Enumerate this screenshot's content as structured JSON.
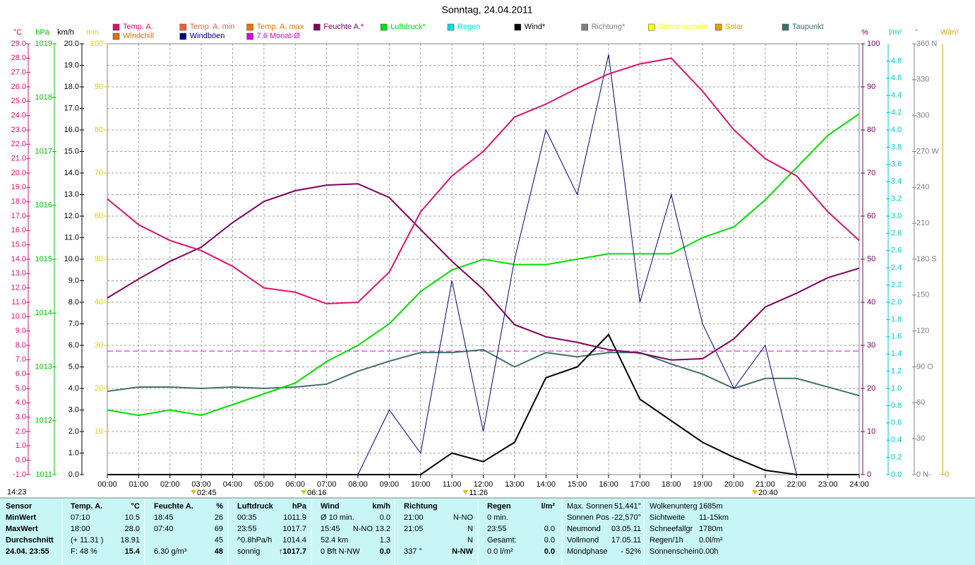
{
  "chart_data": {
    "type": "line",
    "title": "Sonntag, 24.04.2011",
    "time_label": "14:23",
    "grid": true,
    "x": [
      0,
      1,
      2,
      3,
      4,
      5,
      6,
      7,
      8,
      9,
      10,
      11,
      12,
      13,
      14,
      15,
      16,
      17,
      18,
      19,
      20,
      21,
      22,
      23,
      24
    ],
    "xlim": [
      0,
      24
    ],
    "xticks": [
      {
        "value": 0,
        "label": "00:00"
      },
      {
        "value": 1,
        "label": "01:00"
      },
      {
        "value": 2,
        "label": "02:00"
      },
      {
        "value": 3,
        "label": "03:00"
      },
      {
        "value": 4,
        "label": "04:00"
      },
      {
        "value": 5,
        "label": "05:00"
      },
      {
        "value": 6,
        "label": "06:00"
      },
      {
        "value": 7,
        "label": "07:00"
      },
      {
        "value": 8,
        "label": "08:00"
      },
      {
        "value": 9,
        "label": "09:00"
      },
      {
        "value": 10,
        "label": "10:00"
      },
      {
        "value": 11,
        "label": "11:00"
      },
      {
        "value": 12,
        "label": "12:00"
      },
      {
        "value": 13,
        "label": "13:00"
      },
      {
        "value": 14,
        "label": "14:00"
      },
      {
        "value": 15,
        "label": "15:00"
      },
      {
        "value": 16,
        "label": "16:00"
      },
      {
        "value": 17,
        "label": "17:00"
      },
      {
        "value": 18,
        "label": "18:00"
      },
      {
        "value": 19,
        "label": "19:00"
      },
      {
        "value": 20,
        "label": "20:00"
      },
      {
        "value": 21,
        "label": "21:00"
      },
      {
        "value": 22,
        "label": "22:00"
      },
      {
        "value": 23,
        "label": "23:00"
      },
      {
        "value": 24,
        "label": "24:00"
      }
    ],
    "markers": [
      {
        "x": 2.75,
        "label": "02:45"
      },
      {
        "x": 6.267,
        "label": "06:16"
      },
      {
        "x": 11.433,
        "label": "11:26"
      },
      {
        "x": 20.667,
        "label": "20:40"
      }
    ],
    "axes": [
      {
        "title": "°C",
        "color": "#e0106e",
        "ylim": [
          -1,
          29
        ],
        "yticks": [
          {
            "value": 29,
            "label": "29.0"
          },
          {
            "value": 28,
            "label": "28.0"
          },
          {
            "value": 27,
            "label": "27.0"
          },
          {
            "value": 26,
            "label": "26.0"
          },
          {
            "value": 25,
            "label": "25.0"
          },
          {
            "value": 24,
            "label": "24.0"
          },
          {
            "value": 23,
            "label": "23.0"
          },
          {
            "value": 22,
            "label": "22.0"
          },
          {
            "value": 21,
            "label": "21.0"
          },
          {
            "value": 20,
            "label": "20.0"
          },
          {
            "value": 19,
            "label": "19.0"
          },
          {
            "value": 18,
            "label": "18.0"
          },
          {
            "value": 17,
            "label": "17.0"
          },
          {
            "value": 16,
            "label": "16.0"
          },
          {
            "value": 15,
            "label": "15.0"
          },
          {
            "value": 14,
            "label": "14.0"
          },
          {
            "value": 13,
            "label": "13.0"
          },
          {
            "value": 12,
            "label": "12.0"
          },
          {
            "value": 11,
            "label": "11.0"
          },
          {
            "value": 10,
            "label": "10.0"
          },
          {
            "value": 9,
            "label": "9.0"
          },
          {
            "value": 8,
            "label": "8.0"
          },
          {
            "value": 7,
            "label": "7.0"
          },
          {
            "value": 6,
            "label": "6.0"
          },
          {
            "value": 5,
            "label": "5.0"
          },
          {
            "value": 4,
            "label": "4.0"
          },
          {
            "value": 3,
            "label": "3.0"
          },
          {
            "value": 2,
            "label": "2.0"
          },
          {
            "value": 1,
            "label": "1.0"
          },
          {
            "value": 0,
            "label": "0.0"
          },
          {
            "value": -1,
            "label": "-1.0"
          }
        ]
      },
      {
        "title": "hPa",
        "color": "#00c000",
        "ylim": [
          1011,
          1019
        ],
        "yticks": [
          1019,
          1018,
          1017,
          1016,
          1015,
          1014,
          1013,
          1012,
          1011
        ]
      },
      {
        "title": "km/h",
        "color": "#000000",
        "ylim": [
          0,
          20
        ],
        "yticks": [
          {
            "value": 20,
            "label": "20.0"
          },
          {
            "value": 19,
            "label": "19.0"
          },
          {
            "value": 18,
            "label": "18.0"
          },
          {
            "value": 17,
            "label": "17.0"
          },
          {
            "value": 16,
            "label": "16.0"
          },
          {
            "value": 15,
            "label": "15.0"
          },
          {
            "value": 14,
            "label": "14.0"
          },
          {
            "value": 13,
            "label": "13.0"
          },
          {
            "value": 12,
            "label": "12.0"
          },
          {
            "value": 11,
            "label": "11.0"
          },
          {
            "value": 10,
            "label": "10.0"
          },
          {
            "value": 9,
            "label": "9.0"
          },
          {
            "value": 8,
            "label": "8.0"
          },
          {
            "value": 7,
            "label": "7.0"
          },
          {
            "value": 6,
            "label": "6.0"
          },
          {
            "value": 5,
            "label": "5.0"
          },
          {
            "value": 4,
            "label": "4.0"
          },
          {
            "value": 3,
            "label": "3.0"
          },
          {
            "value": 2,
            "label": "2.0"
          },
          {
            "value": 1,
            "label": "1.0"
          },
          {
            "value": 0,
            "label": "0.0"
          }
        ]
      },
      {
        "title": "min",
        "color": "#e0d000",
        "ylim": [
          0,
          100
        ],
        "yticks": [
          100,
          90,
          80,
          70,
          60,
          50,
          40,
          30,
          20,
          10
        ]
      },
      {
        "title": "%",
        "color": "#800060",
        "ylim": [
          0,
          100
        ],
        "yticks": [
          100,
          90,
          80,
          70,
          60,
          50,
          40,
          30,
          20,
          10,
          0
        ]
      },
      {
        "title": "l/m²",
        "color": "#00c8c8",
        "ylim": [
          0,
          5
        ],
        "yticks": [
          {
            "value": 4.8,
            "label": "4.8"
          },
          {
            "value": 4.6,
            "label": "4.6"
          },
          {
            "value": 4.4,
            "label": "4.4"
          },
          {
            "value": 4.2,
            "label": "4.2"
          },
          {
            "value": 4,
            "label": "4.0"
          },
          {
            "value": 3.8,
            "label": "3.8"
          },
          {
            "value": 3.6,
            "label": "3.6"
          },
          {
            "value": 3.4,
            "label": "3.4"
          },
          {
            "value": 3.2,
            "label": "3.2"
          },
          {
            "value": 3,
            "label": "3.0"
          },
          {
            "value": 2.8,
            "label": "2.8"
          },
          {
            "value": 2.6,
            "label": "2.6"
          },
          {
            "value": 2.4,
            "label": "2.4"
          },
          {
            "value": 2.2,
            "label": "2.2"
          },
          {
            "value": 2,
            "label": "2.0"
          },
          {
            "value": 1.8,
            "label": "1.8"
          },
          {
            "value": 1.6,
            "label": "1.6"
          },
          {
            "value": 1.4,
            "label": "1.4"
          },
          {
            "value": 1.2,
            "label": "1.2"
          },
          {
            "value": 1,
            "label": "1.0"
          },
          {
            "value": 0.8,
            "label": "0.8"
          },
          {
            "value": 0.6,
            "label": "0.6"
          },
          {
            "value": 0.4,
            "label": "0.4"
          },
          {
            "value": 0.2,
            "label": "0.2"
          },
          {
            "value": 0,
            "label": "0.0"
          }
        ]
      },
      {
        "title": "°",
        "color": "#808080",
        "ylim": [
          0,
          360
        ],
        "yticks": [
          {
            "value": 360,
            "label": "360 N"
          },
          330,
          300,
          {
            "value": 270,
            "label": "270 W"
          },
          240,
          210,
          {
            "value": 180,
            "label": "180 S"
          },
          150,
          120,
          {
            "value": 90,
            "label": "90 O"
          },
          60,
          30,
          {
            "value": 0,
            "label": "0 N-"
          }
        ]
      },
      {
        "title": "W/m²",
        "color": "#e0a000",
        "yticks": [
          0
        ]
      }
    ],
    "legend": [
      {
        "name": "Temp. A.",
        "color": "#e0106e"
      },
      {
        "name": "Temp. A. min",
        "color": "#f06040"
      },
      {
        "name": "Temp. A. max",
        "color": "#f07000"
      },
      {
        "name": "Feuchte A.*",
        "color": "#800060"
      },
      {
        "name": "Luftdruck*",
        "color": "#00e000"
      },
      {
        "name": "Regen",
        "color": "#00e0e0"
      },
      {
        "name": "Wind*",
        "color": "#000000"
      },
      {
        "name": "Richtung*",
        "color": "#808080"
      },
      {
        "name": "Sonnenschein",
        "color": "#ffff00"
      },
      {
        "name": "Solar",
        "color": "#e0a000"
      },
      {
        "name": "Taupunkt",
        "color": "#407070"
      },
      {
        "name": "Windchill",
        "color": "#e07000"
      },
      {
        "name": "Windböen",
        "color": "#000080"
      },
      {
        "name": "7.6 Monat-Ø",
        "color": "#e000e0"
      }
    ],
    "series": [
      {
        "legend": 10,
        "axis": 0,
        "values": [
          4.8,
          5.1,
          5.1,
          5.0,
          5.1,
          5.0,
          5.1,
          5.3,
          6.2,
          6.9,
          7.5,
          7.5,
          7.7,
          6.5,
          7.5,
          7.2,
          7.5,
          7.5,
          6.7,
          6.0,
          5.0,
          5.7,
          5.7,
          5.1,
          4.5
        ]
      },
      {
        "legend": 4,
        "axis": 1,
        "values": [
          1012.2,
          1012.1,
          1012.2,
          1012.1,
          1012.3,
          1012.5,
          1012.7,
          1013.1,
          1013.4,
          1013.8,
          1014.4,
          1014.8,
          1015.0,
          1014.9,
          1014.9,
          1015.0,
          1015.1,
          1015.1,
          1015.1,
          1015.4,
          1015.6,
          1016.1,
          1016.7,
          1017.3,
          1017.7
        ]
      },
      {
        "legend": 12,
        "axis": 2,
        "values": [
          0,
          0,
          0,
          0,
          0,
          0,
          0,
          0,
          0,
          3,
          1,
          9,
          2,
          10,
          16,
          13,
          19.5,
          8,
          13,
          7,
          4,
          6,
          0,
          0,
          0
        ]
      },
      {
        "legend": 6,
        "axis": 2,
        "values": [
          0,
          0,
          0,
          0,
          0,
          0,
          0,
          0,
          0,
          0,
          0,
          1.0,
          0.6,
          1.5,
          4.5,
          5.0,
          6.5,
          3.5,
          2.5,
          1.5,
          0.8,
          0.2,
          0,
          0,
          0
        ]
      },
      {
        "legend": 3,
        "axis": 4,
        "values": [
          41,
          45.4,
          49.5,
          52.8,
          58.5,
          63.4,
          65.9,
          67.2,
          67.5,
          64.3,
          56.9,
          49.5,
          43,
          34.8,
          32,
          30.7,
          29,
          28.2,
          26.6,
          26.9,
          31.5,
          38.9,
          42.1,
          45.7,
          47.9
        ]
      },
      {
        "legend": 0,
        "axis": 0,
        "values": [
          18.2,
          16.4,
          15.3,
          14.6,
          13.5,
          12.0,
          11.7,
          10.9,
          11.0,
          13.1,
          17.3,
          19.8,
          21.5,
          23.9,
          24.8,
          25.9,
          26.9,
          27.6,
          28.0,
          25.7,
          23.0,
          21.0,
          19.8,
          17.3,
          15.3
        ]
      }
    ],
    "reference_lines": [
      {
        "legend": 13,
        "axis": 0,
        "value": 7.6
      }
    ]
  },
  "stats": {
    "blocks": [
      {
        "header": [
          "Sensor",
          null,
          null
        ],
        "rows": [
          [
            "MinWert",
            null,
            null
          ],
          [
            "MaxWert",
            null,
            null
          ],
          [
            "Durchschnitt",
            null,
            null
          ],
          [
            "24.04. 23:55",
            null,
            null
          ]
        ]
      },
      {
        "header": [
          "Temp. A.",
          null,
          "°C"
        ],
        "rows": [
          [
            "07:10",
            null,
            "10.5"
          ],
          [
            "18:00",
            null,
            "28.0"
          ],
          [
            "(+ 11.31 )",
            null,
            "18.91"
          ],
          [
            "F: 48 %",
            null,
            "15.4"
          ]
        ]
      },
      {
        "header": [
          "Feuchte A.",
          null,
          "%"
        ],
        "rows": [
          [
            "18:45",
            null,
            "26"
          ],
          [
            "07:40",
            null,
            "69"
          ],
          [
            null,
            null,
            "45"
          ],
          [
            "6.30 g/m³",
            null,
            "48"
          ]
        ]
      },
      {
        "header": [
          "Luftdruck",
          null,
          "hPa"
        ],
        "rows": [
          [
            "00:35",
            null,
            "1011.9"
          ],
          [
            "23:55",
            null,
            "1017.7"
          ],
          [
            "^0.8hPa/h",
            null,
            "1014.4"
          ],
          [
            "sonnig",
            null,
            "↑1017.7"
          ]
        ]
      },
      {
        "header": [
          "Wind",
          null,
          "km/h"
        ],
        "rows": [
          [
            "Ø 10 min.",
            null,
            "0.0"
          ],
          [
            "15:45",
            "N-NO",
            "13.2"
          ],
          [
            "52.4 km",
            null,
            "1.3"
          ],
          [
            "0 Bft N-NW",
            null,
            "0.0"
          ]
        ]
      },
      {
        "header": [
          "Richtung",
          null,
          null
        ],
        "rows": [
          [
            "21:00",
            null,
            "N-NO"
          ],
          [
            "21:05",
            null,
            "N"
          ],
          [
            null,
            null,
            "N"
          ],
          [
            "337 °",
            null,
            "N-NW"
          ]
        ]
      },
      {
        "header": [
          "Regen",
          null,
          "l/m²"
        ],
        "rows": [
          [
            "0 min.",
            null,
            null
          ],
          [
            "23:55",
            null,
            "0.0"
          ],
          [
            "Gesamt:",
            null,
            "0.0"
          ],
          [
            "0.0 l/m²",
            null,
            "0.0"
          ]
        ]
      },
      {
        "rows": [
          [
            "Max. Sonnen",
            null,
            "51,441°"
          ],
          [
            "Sonnen Pos",
            null,
            "-22,570°"
          ],
          [
            "Neumond",
            null,
            "03.05.11"
          ],
          [
            "Vollmond",
            null,
            "17.05.11"
          ],
          [
            "Mondphase",
            null,
            "- 52%"
          ]
        ]
      },
      {
        "rows": [
          [
            "Wolkenunterg",
            "1685m",
            null
          ],
          [
            "Sichtweite",
            "11-15km",
            null
          ],
          [
            "Schneefallgr",
            "1780m",
            null
          ],
          [
            "Regen/1h",
            "0.0l/m²",
            null
          ],
          [
            "Sonnenschein",
            "0.00h",
            null
          ]
        ]
      }
    ]
  }
}
